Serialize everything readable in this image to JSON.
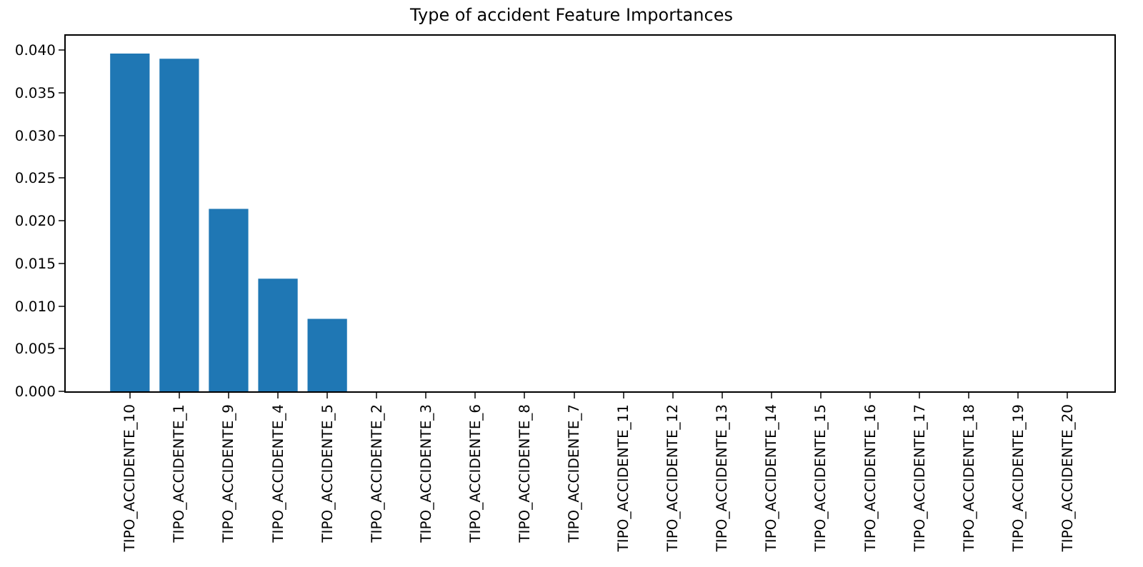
{
  "chart_data": {
    "type": "bar",
    "title": "Type of accident Feature Importances",
    "categories": [
      "TIPO_ACCIDENTE_10",
      "TIPO_ACCIDENTE_1",
      "TIPO_ACCIDENTE_9",
      "TIPO_ACCIDENTE_4",
      "TIPO_ACCIDENTE_5",
      "TIPO_ACCIDENTE_2",
      "TIPO_ACCIDENTE_3",
      "TIPO_ACCIDENTE_6",
      "TIPO_ACCIDENTE_8",
      "TIPO_ACCIDENTE_7",
      "TIPO_ACCIDENTE_11",
      "TIPO_ACCIDENTE_12",
      "TIPO_ACCIDENTE_13",
      "TIPO_ACCIDENTE_14",
      "TIPO_ACCIDENTE_15",
      "TIPO_ACCIDENTE_16",
      "TIPO_ACCIDENTE_17",
      "TIPO_ACCIDENTE_18",
      "TIPO_ACCIDENTE_19",
      "TIPO_ACCIDENTE_20"
    ],
    "values": [
      0.0396,
      0.039,
      0.0214,
      0.0132,
      0.0085,
      0,
      0,
      0,
      0,
      0,
      0,
      0,
      0,
      0,
      0,
      0,
      0,
      0,
      0,
      0
    ],
    "color": "#1f77b4",
    "ylim": [
      0,
      0.0417
    ],
    "yticks": [
      {
        "value": 0,
        "label": "0.000"
      },
      {
        "value": 0.005,
        "label": "0.005"
      },
      {
        "value": 0.01,
        "label": "0.010"
      },
      {
        "value": 0.015,
        "label": "0.015"
      },
      {
        "value": 0.02,
        "label": "0.020"
      },
      {
        "value": 0.025,
        "label": "0.025"
      },
      {
        "value": 0.03,
        "label": "0.030"
      },
      {
        "value": 0.035,
        "label": "0.035"
      },
      {
        "value": 0.04,
        "label": "0.040"
      }
    ]
  }
}
